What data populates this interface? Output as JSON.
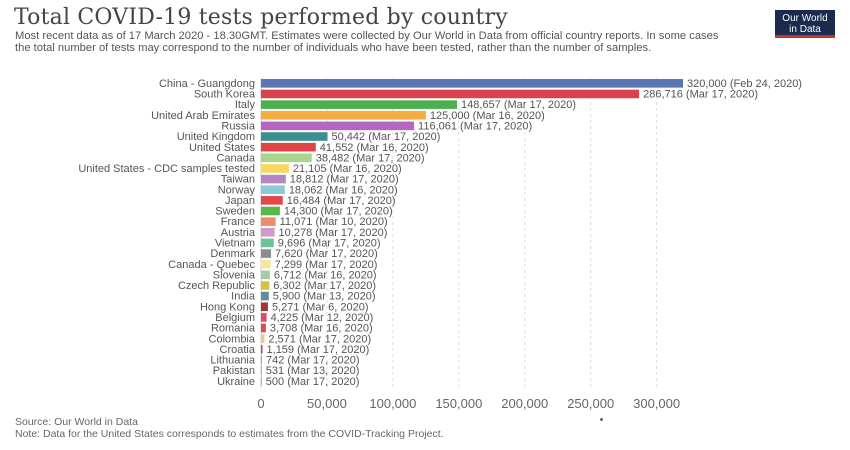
{
  "header": {
    "title": "Total COVID-19 tests performed by country",
    "subtitle": "Most recent data as of 17 March 2020 - 18.30GMT. Estimates were collected by Our World in Data from official country reports. In some cases the total number of tests may correspond to the number of individuals who have been tested, rather than the number of samples."
  },
  "logo": {
    "line1": "Our World",
    "line2": "in Data",
    "bg_color": "#1a2b4e",
    "accent_color": "#c0392b"
  },
  "footer": {
    "source": "Source: Our World in Data",
    "note": "Note: Data for the United States corresponds to estimates from the COVID-Tracking Project."
  },
  "chart_data": {
    "type": "bar",
    "orientation": "horizontal",
    "title": "Total COVID-19 tests performed by country",
    "xlabel": "",
    "ylabel": "",
    "xlim": [
      0,
      320000
    ],
    "xticks": [
      0,
      50000,
      100000,
      150000,
      200000,
      250000,
      300000
    ],
    "xtick_labels": [
      "0",
      "50,000",
      "100,000",
      "150,000",
      "200,000",
      "250,000",
      "300,000"
    ],
    "grid": "vertical dashed",
    "bars": [
      {
        "country": "China - Guangdong",
        "value": 320000,
        "label": "320,000 (Feb 24, 2020)",
        "color": "#5b75b5"
      },
      {
        "country": "South Korea",
        "value": 286716,
        "label": "286,716 (Mar 17, 2020)",
        "color": "#d9434e"
      },
      {
        "country": "Italy",
        "value": 148657,
        "label": "148,657 (Mar 17, 2020)",
        "color": "#4caf50"
      },
      {
        "country": "United Arab Emirates",
        "value": 125000,
        "label": "125,000 (Mar 16, 2020)",
        "color": "#f5ad42"
      },
      {
        "country": "Russia",
        "value": 116061,
        "label": "116,061 (Mar 17, 2020)",
        "color": "#b565c4"
      },
      {
        "country": "United Kingdom",
        "value": 50442,
        "label": "50,442 (Mar 17, 2020)",
        "color": "#3c8f8f"
      },
      {
        "country": "United States",
        "value": 41552,
        "label": "41,552 (Mar 16, 2020)",
        "color": "#e04545"
      },
      {
        "country": "Canada",
        "value": 38482,
        "label": "38,482 (Mar 17, 2020)",
        "color": "#a8d58e"
      },
      {
        "country": "United States - CDC samples tested",
        "value": 21105,
        "label": "21,105 (Mar 16, 2020)",
        "color": "#f6d860"
      },
      {
        "country": "Taiwan",
        "value": 18812,
        "label": "18,812 (Mar 17, 2020)",
        "color": "#b784c4"
      },
      {
        "country": "Norway",
        "value": 18062,
        "label": "18,062 (Mar 16, 2020)",
        "color": "#8ec9d6"
      },
      {
        "country": "Japan",
        "value": 16484,
        "label": "16,484 (Mar 17, 2020)",
        "color": "#e2474b"
      },
      {
        "country": "Sweden",
        "value": 14300,
        "label": "14,300 (Mar 17, 2020)",
        "color": "#59b948"
      },
      {
        "country": "France",
        "value": 11071,
        "label": "11,071 (Mar 10, 2020)",
        "color": "#ef8a6b"
      },
      {
        "country": "Austria",
        "value": 10278,
        "label": "10,278 (Mar 17, 2020)",
        "color": "#d199c9"
      },
      {
        "country": "Vietnam",
        "value": 9696,
        "label": "9,696 (Mar 17, 2020)",
        "color": "#6cc49b"
      },
      {
        "country": "Denmark",
        "value": 7620,
        "label": "7,620 (Mar 17, 2020)",
        "color": "#8c8c8c"
      },
      {
        "country": "Canada - Quebec",
        "value": 7299,
        "label": "7,299 (Mar 17, 2020)",
        "color": "#f7e59a"
      },
      {
        "country": "Slovenia",
        "value": 6712,
        "label": "6,712 (Mar 16, 2020)",
        "color": "#a9c9a0"
      },
      {
        "country": "Czech Republic",
        "value": 6302,
        "label": "6,302 (Mar 17, 2020)",
        "color": "#d6c23a"
      },
      {
        "country": "India",
        "value": 5900,
        "label": "5,900 (Mar 13, 2020)",
        "color": "#5e8ca8"
      },
      {
        "country": "Hong Kong",
        "value": 5271,
        "label": "5,271 (Mar 6, 2020)",
        "color": "#a8323a"
      },
      {
        "country": "Belgium",
        "value": 4225,
        "label": "4,225 (Mar 12, 2020)",
        "color": "#d64a6e"
      },
      {
        "country": "Romania",
        "value": 3708,
        "label": "3,708 (Mar 16, 2020)",
        "color": "#d84f4f"
      },
      {
        "country": "Colombia",
        "value": 2571,
        "label": "2,571 (Mar 17, 2020)",
        "color": "#f2c29c"
      },
      {
        "country": "Croatia",
        "value": 1159,
        "label": "1,159 (Mar 17, 2020)",
        "color": "#c04848"
      },
      {
        "country": "Lithuania",
        "value": 742,
        "label": "742 (Mar 17, 2020)",
        "color": "#a0a0a0"
      },
      {
        "country": "Pakistan",
        "value": 531,
        "label": "531 (Mar 13, 2020)",
        "color": "#a0a0a0"
      },
      {
        "country": "Ukraine",
        "value": 500,
        "label": "500 (Mar 17, 2020)",
        "color": "#c79a74"
      }
    ]
  }
}
